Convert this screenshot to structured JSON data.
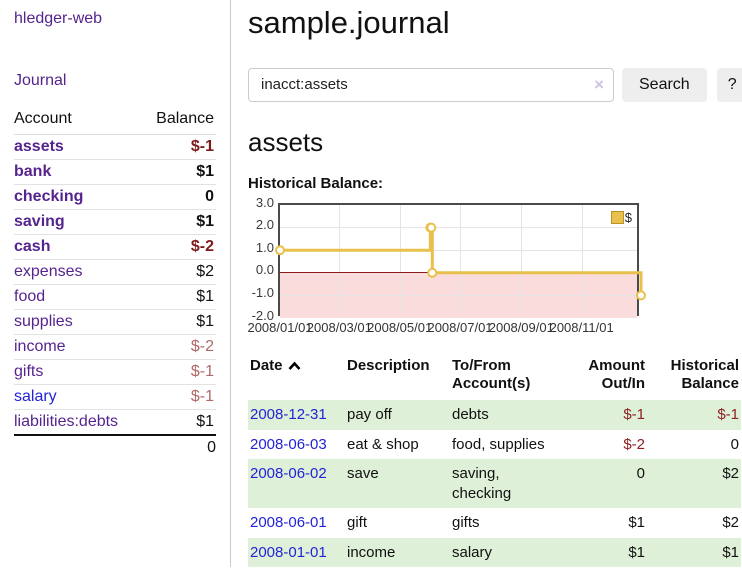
{
  "app": {
    "title": "hledger-web"
  },
  "sidebar": {
    "journal_label": "Journal",
    "table": {
      "account_header": "Account",
      "balance_header": "Balance",
      "accounts": [
        {
          "name": "assets",
          "balance": "$-1"
        },
        {
          "name": "bank",
          "balance": "$1"
        },
        {
          "name": "checking",
          "balance": "0"
        },
        {
          "name": "saving",
          "balance": "$1"
        },
        {
          "name": "cash",
          "balance": "$-2"
        },
        {
          "name": "expenses",
          "balance": "$2"
        },
        {
          "name": "food",
          "balance": "$1"
        },
        {
          "name": "supplies",
          "balance": "$1"
        },
        {
          "name": "income",
          "balance": "$-2"
        },
        {
          "name": "gifts",
          "balance": "$-1"
        },
        {
          "name": "salary",
          "balance": "$-1"
        },
        {
          "name": "liabilities:debts",
          "balance": "$1"
        }
      ],
      "total": "0"
    }
  },
  "header": {
    "title": "sample.journal"
  },
  "search": {
    "value": "inacct:assets",
    "clear_icon": "×",
    "button_label": "Search",
    "help_label": "?"
  },
  "account_page": {
    "heading": "assets",
    "chart_title": "Historical Balance:"
  },
  "chart_data": {
    "type": "line",
    "step": true,
    "title": "Historical Balance:",
    "x_domain": [
      "2008-01-01",
      "2008-12-31"
    ],
    "ylim": [
      -2,
      3
    ],
    "y_ticks": [
      3,
      2,
      1,
      0,
      -1,
      -2
    ],
    "x_ticks": [
      "2008/01/01",
      "2008/03/01",
      "2008/05/01",
      "2008/07/01",
      "2008/09/01",
      "2008/11/01"
    ],
    "series": [
      {
        "name": "$",
        "color": "#e9c04b",
        "points": [
          [
            "2008-01-01",
            1
          ],
          [
            "2008-06-01",
            2
          ],
          [
            "2008-06-02",
            2
          ],
          [
            "2008-06-03",
            0
          ],
          [
            "2008-12-31",
            -1
          ]
        ]
      }
    ],
    "grid": true,
    "legend_position": "top-right",
    "negative_region_color": "#fbdcdc",
    "zero_line_color": "#8b1a1a"
  },
  "register": {
    "headers": {
      "date": "Date",
      "description": "Description",
      "accounts": "To/From Account(s)",
      "amount": "Amount Out/In",
      "balance": "Historical Balance"
    },
    "rows": [
      {
        "date": "2008-12-31",
        "description": "pay off",
        "accounts": "debts",
        "amount": "$-1",
        "balance": "$-1"
      },
      {
        "date": "2008-06-03",
        "description": "eat & shop",
        "accounts": "food, supplies",
        "amount": "$-2",
        "balance": "0"
      },
      {
        "date": "2008-06-02",
        "description": "save",
        "accounts": "saving, checking",
        "amount": "0",
        "balance": "$2"
      },
      {
        "date": "2008-06-01",
        "description": "gift",
        "accounts": "gifts",
        "amount": "$1",
        "balance": "$2"
      },
      {
        "date": "2008-01-01",
        "description": "income",
        "accounts": "salary",
        "amount": "$1",
        "balance": "$1"
      }
    ]
  }
}
